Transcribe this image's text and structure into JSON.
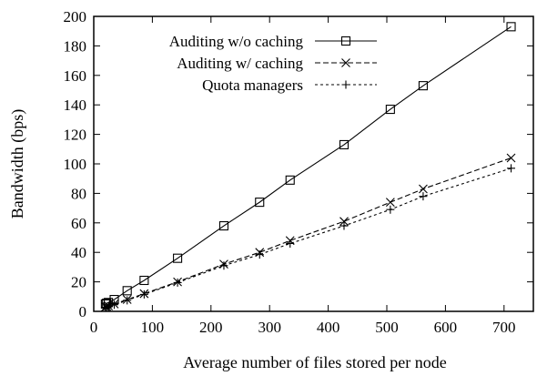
{
  "chart_data": {
    "type": "line",
    "title": "",
    "xlabel": "Average number of files stored per node",
    "ylabel": "Bandwidth (bps)",
    "xlim": [
      0,
      750
    ],
    "ylim": [
      0,
      200
    ],
    "x_ticks": [
      "0",
      "100",
      "200",
      "300",
      "400",
      "500",
      "600",
      "700"
    ],
    "y_ticks": [
      "0",
      "20",
      "40",
      "60",
      "80",
      "100",
      "120",
      "140",
      "160",
      "180",
      "200"
    ],
    "grid": false,
    "legend_position": "top-left",
    "series": [
      {
        "name": "Auditing w/o caching",
        "marker": "square",
        "line_style": "solid",
        "x": [
          20,
          22,
          25,
          35,
          57,
          86,
          143,
          222,
          283,
          335,
          427,
          506,
          562,
          712
        ],
        "y": [
          5,
          5.5,
          6,
          8,
          14,
          21,
          36,
          58,
          74,
          89,
          113,
          137,
          153,
          193
        ]
      },
      {
        "name": "Auditing w/ caching",
        "marker": "x",
        "line_style": "dashed",
        "x": [
          20,
          22,
          25,
          35,
          57,
          86,
          143,
          222,
          283,
          335,
          427,
          506,
          562,
          712
        ],
        "y": [
          3,
          3.3,
          3.7,
          5,
          8,
          12,
          20,
          32,
          40,
          48,
          61,
          74,
          83,
          104
        ]
      },
      {
        "name": "Quota managers",
        "marker": "plus",
        "line_style": "dotted",
        "x": [
          20,
          22,
          25,
          35,
          57,
          86,
          143,
          222,
          283,
          335,
          427,
          506,
          562,
          712
        ],
        "y": [
          2.5,
          2.8,
          3.2,
          4.5,
          7.5,
          11.5,
          19.5,
          31,
          38.5,
          46,
          58,
          69,
          78,
          97
        ]
      }
    ]
  }
}
